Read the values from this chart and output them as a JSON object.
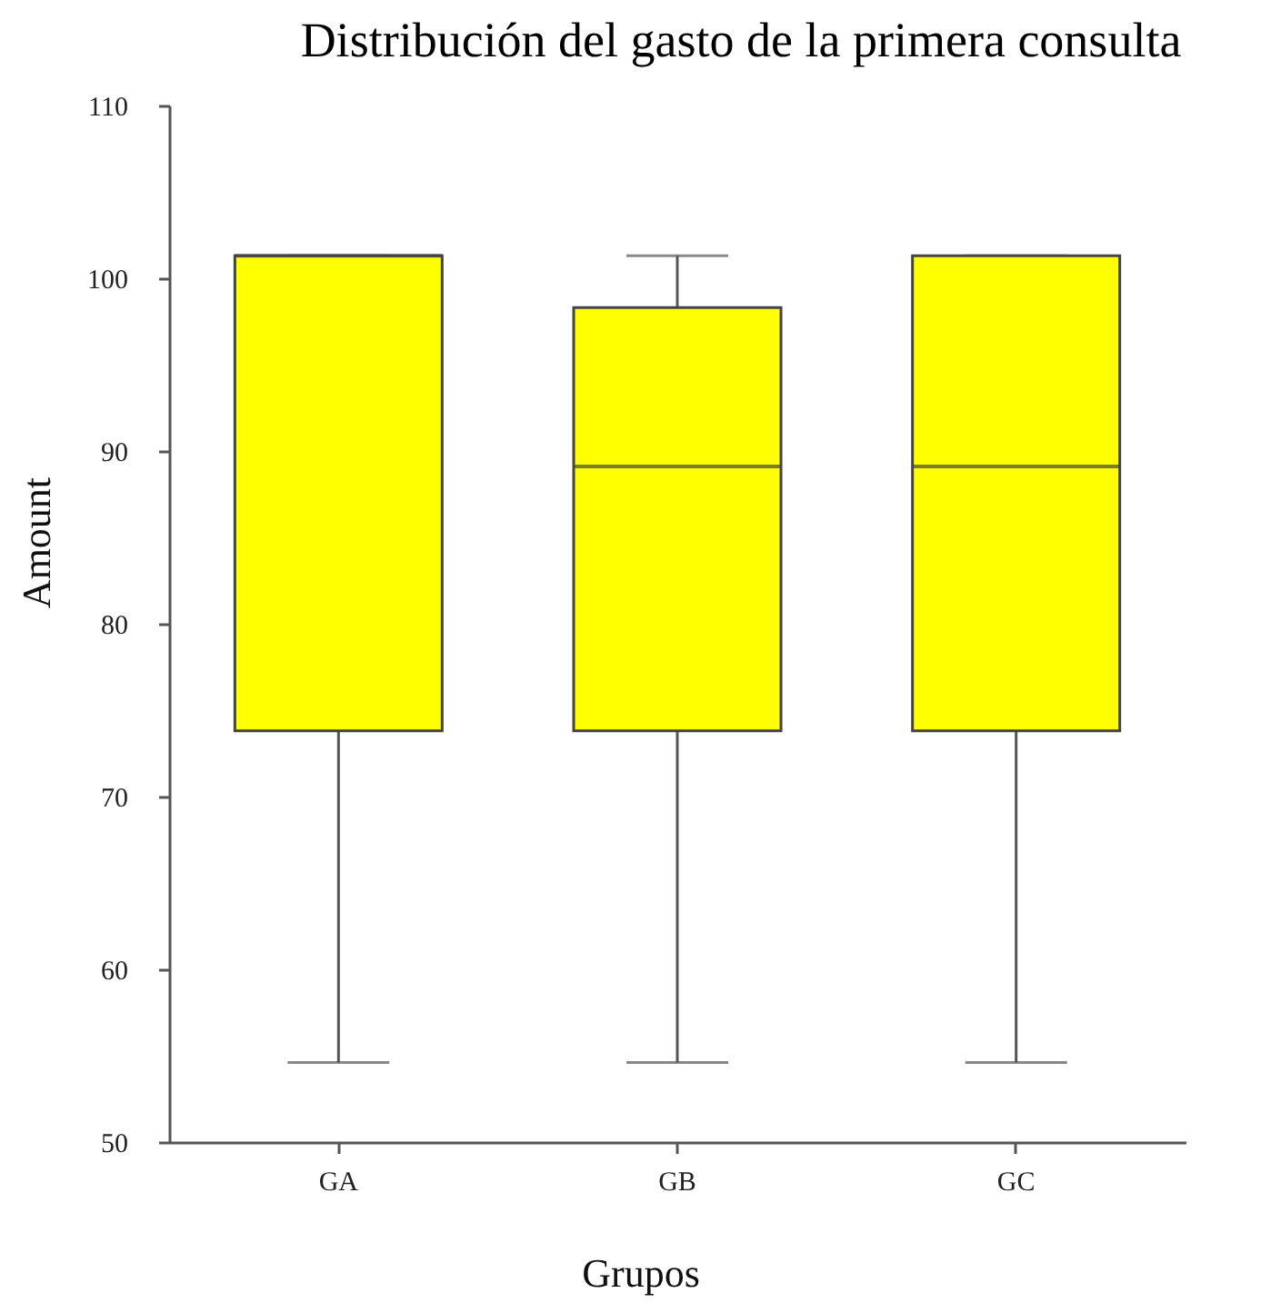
{
  "chart_data": {
    "type": "box",
    "title": "Distribución del gasto de la primera consulta",
    "xlabel": "Grupos",
    "ylabel": "Amount",
    "categories": [
      "GA",
      "GB",
      "GC"
    ],
    "boxes": [
      {
        "low": 54.6,
        "q1": 73.8,
        "median": 101.3,
        "q3": 101.3,
        "high": 101.3
      },
      {
        "low": 54.6,
        "q1": 73.8,
        "median": 89.1,
        "q3": 98.3,
        "high": 101.3
      },
      {
        "low": 54.6,
        "q1": 73.8,
        "median": 89.1,
        "q3": 101.3,
        "high": 101.3
      }
    ],
    "color": "#ffff00",
    "ylim": [
      50,
      110
    ],
    "yticks": [
      50,
      60,
      70,
      80,
      90,
      100,
      110
    ],
    "grid": false
  }
}
